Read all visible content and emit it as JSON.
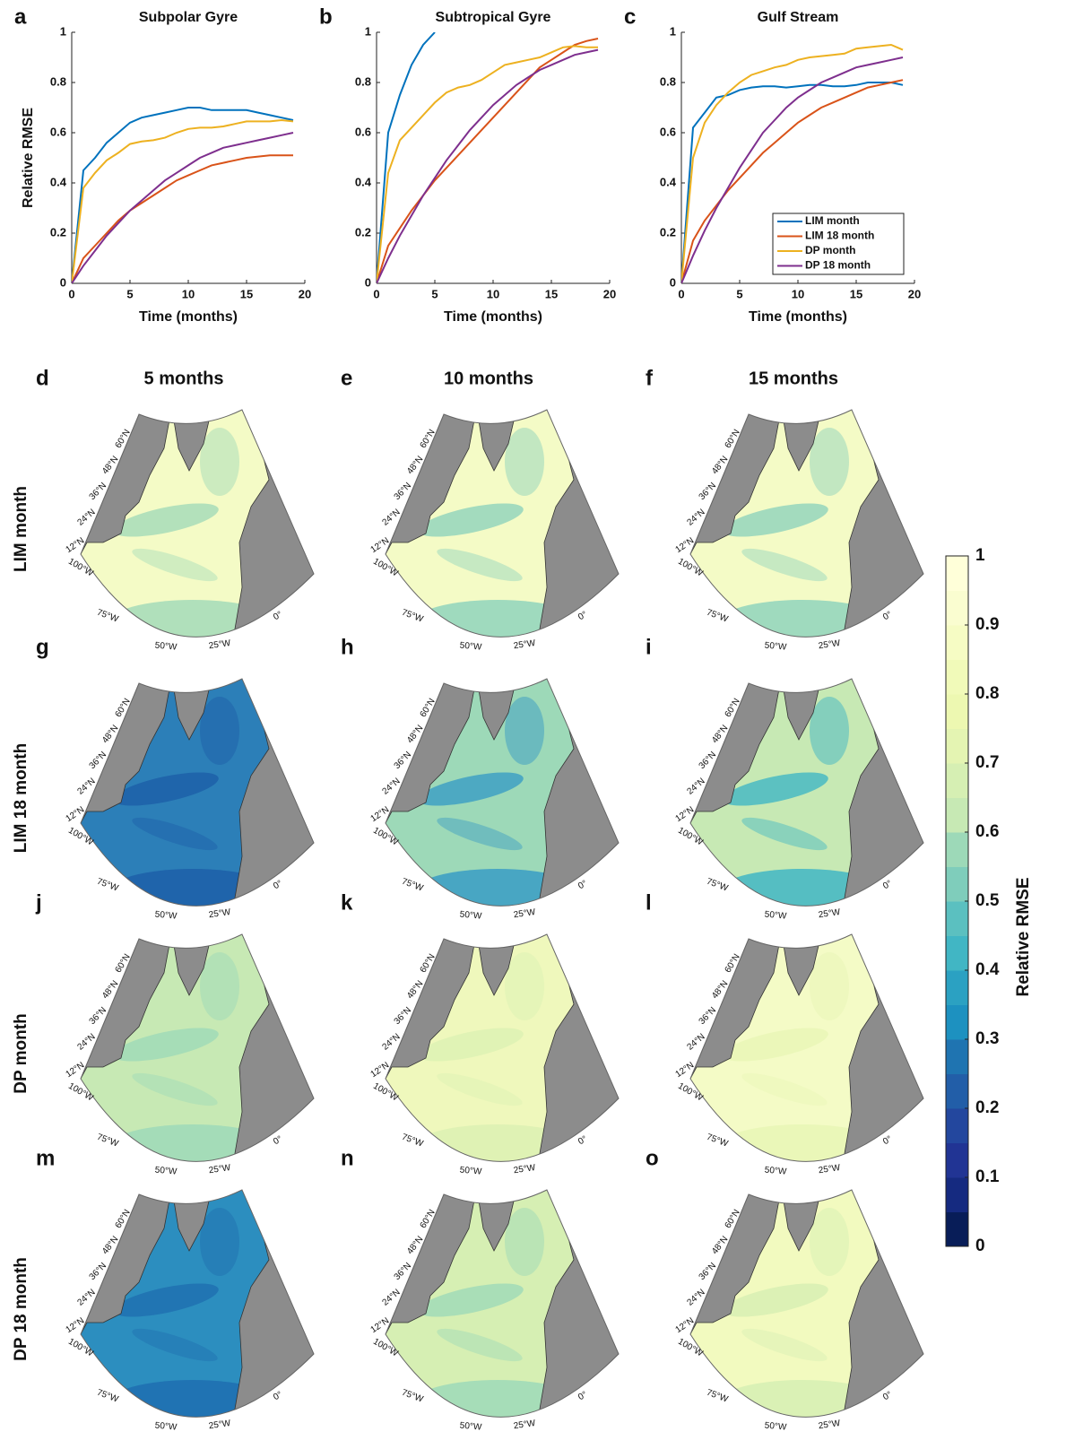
{
  "chart_data": [
    {
      "type": "line",
      "panel": "a",
      "title": "Subpolar Gyre",
      "xlabel": "Time (months)",
      "ylabel": "Relative RMSE",
      "x": [
        0,
        1,
        2,
        3,
        4,
        5,
        6,
        7,
        8,
        9,
        10,
        11,
        12,
        13,
        14,
        15,
        16,
        17,
        18,
        19
      ],
      "xlim": [
        0,
        20
      ],
      "xticks": [
        0,
        5,
        10,
        15,
        20
      ],
      "ylim": [
        0,
        1
      ],
      "yticks": [
        0,
        0.2,
        0.4,
        0.6,
        0.8,
        1
      ],
      "series": [
        {
          "color": "#0072bd",
          "values": [
            0,
            0.45,
            0.5,
            0.56,
            0.6,
            0.64,
            0.66,
            0.67,
            0.68,
            0.69,
            0.7,
            0.7,
            0.69,
            0.69,
            0.69,
            0.69,
            0.68,
            0.67,
            0.66,
            0.65
          ]
        },
        {
          "color": "#d95319",
          "values": [
            0,
            0.1,
            0.15,
            0.2,
            0.25,
            0.29,
            0.32,
            0.35,
            0.38,
            0.41,
            0.43,
            0.45,
            0.47,
            0.48,
            0.49,
            0.5,
            0.505,
            0.51,
            0.51,
            0.51
          ]
        },
        {
          "color": "#edb120",
          "values": [
            0,
            0.38,
            0.44,
            0.49,
            0.52,
            0.555,
            0.565,
            0.57,
            0.58,
            0.6,
            0.615,
            0.62,
            0.62,
            0.625,
            0.635,
            0.645,
            0.645,
            0.645,
            0.65,
            0.645
          ]
        },
        {
          "color": "#7e2f8e",
          "values": [
            0,
            0.07,
            0.13,
            0.19,
            0.24,
            0.29,
            0.33,
            0.37,
            0.41,
            0.44,
            0.47,
            0.5,
            0.52,
            0.54,
            0.55,
            0.56,
            0.57,
            0.58,
            0.59,
            0.6
          ]
        }
      ]
    },
    {
      "type": "line",
      "panel": "b",
      "title": "Subtropical Gyre",
      "xlabel": "Time (months)",
      "x": [
        0,
        1,
        2,
        3,
        4,
        5,
        6,
        7,
        8,
        9,
        10,
        11,
        12,
        13,
        14,
        15,
        16,
        17,
        18,
        19
      ],
      "xlim": [
        0,
        20
      ],
      "xticks": [
        0,
        5,
        10,
        15,
        20
      ],
      "ylim": [
        0,
        1
      ],
      "yticks": [
        0,
        0.2,
        0.4,
        0.6,
        0.8,
        1
      ],
      "series": [
        {
          "color": "#0072bd",
          "values": [
            0,
            0.6,
            0.75,
            0.87,
            0.95,
            1,
            null,
            null,
            null,
            null,
            null,
            null,
            null,
            null,
            null,
            null,
            null,
            null,
            null,
            null
          ]
        },
        {
          "color": "#d95319",
          "values": [
            0,
            0.15,
            0.22,
            0.29,
            0.35,
            0.41,
            0.46,
            0.51,
            0.56,
            0.61,
            0.66,
            0.71,
            0.76,
            0.81,
            0.86,
            0.89,
            0.92,
            0.95,
            0.965,
            0.975
          ]
        },
        {
          "color": "#edb120",
          "values": [
            0,
            0.44,
            0.57,
            0.62,
            0.67,
            0.72,
            0.76,
            0.78,
            0.79,
            0.81,
            0.84,
            0.87,
            0.88,
            0.89,
            0.9,
            0.92,
            0.94,
            0.945,
            0.94,
            0.94
          ]
        },
        {
          "color": "#7e2f8e",
          "values": [
            0,
            0.1,
            0.19,
            0.27,
            0.35,
            0.42,
            0.49,
            0.55,
            0.61,
            0.66,
            0.71,
            0.75,
            0.79,
            0.82,
            0.85,
            0.87,
            0.89,
            0.91,
            0.92,
            0.93
          ]
        }
      ]
    },
    {
      "type": "line",
      "panel": "c",
      "title": "Gulf Stream",
      "xlabel": "Time (months)",
      "legend": "lower right",
      "x": [
        0,
        1,
        2,
        3,
        4,
        5,
        6,
        7,
        8,
        9,
        10,
        11,
        12,
        13,
        14,
        15,
        16,
        17,
        18,
        19
      ],
      "xlim": [
        0,
        20
      ],
      "xticks": [
        0,
        5,
        10,
        15,
        20
      ],
      "ylim": [
        0,
        1
      ],
      "yticks": [
        0,
        0.2,
        0.4,
        0.6,
        0.8,
        1
      ],
      "series": [
        {
          "name": "LIM month",
          "color": "#0072bd",
          "values": [
            0,
            0.62,
            0.68,
            0.74,
            0.75,
            0.77,
            0.78,
            0.785,
            0.785,
            0.78,
            0.785,
            0.79,
            0.79,
            0.785,
            0.785,
            0.79,
            0.8,
            0.8,
            0.8,
            0.79
          ]
        },
        {
          "name": "LIM 18 month",
          "color": "#d95319",
          "values": [
            0,
            0.17,
            0.25,
            0.31,
            0.37,
            0.42,
            0.47,
            0.52,
            0.56,
            0.6,
            0.64,
            0.67,
            0.7,
            0.72,
            0.74,
            0.76,
            0.78,
            0.79,
            0.8,
            0.81
          ]
        },
        {
          "name": "DP month",
          "color": "#edb120",
          "values": [
            0,
            0.5,
            0.64,
            0.71,
            0.76,
            0.8,
            0.83,
            0.845,
            0.86,
            0.87,
            0.89,
            0.9,
            0.905,
            0.91,
            0.915,
            0.935,
            0.94,
            0.945,
            0.95,
            0.93
          ]
        },
        {
          "name": "DP 18 month",
          "color": "#7e2f8e",
          "values": [
            0,
            0.11,
            0.21,
            0.3,
            0.38,
            0.46,
            0.53,
            0.6,
            0.65,
            0.7,
            0.74,
            0.77,
            0.8,
            0.82,
            0.84,
            0.86,
            0.87,
            0.88,
            0.89,
            0.9
          ]
        }
      ]
    }
  ],
  "maps": {
    "column_titles": [
      "5 months",
      "10 months",
      "15 months"
    ],
    "rows": [
      {
        "title": "LIM month",
        "panels": [
          "d",
          "e",
          "f"
        ]
      },
      {
        "title": "LIM 18 month",
        "panels": [
          "g",
          "h",
          "i"
        ]
      },
      {
        "title": "DP month",
        "panels": [
          "j",
          "k",
          "l"
        ]
      },
      {
        "title": "DP 18 month",
        "panels": [
          "m",
          "n",
          "o"
        ]
      }
    ],
    "lat_labels": [
      "60°N",
      "48°N",
      "36°N",
      "24°N",
      "12°N"
    ],
    "lon_labels": [
      "100°W",
      "75°W",
      "50°W",
      "25°W",
      "0°"
    ],
    "colorbar": {
      "label": "Relative RMSE",
      "clim": [
        0,
        1
      ],
      "ticks": [
        0,
        0.1,
        0.2,
        0.3,
        0.4,
        0.5,
        0.6,
        0.7,
        0.8,
        0.9,
        1
      ],
      "colors": [
        "#081d58",
        "#152a80",
        "#213494",
        "#23479e",
        "#225ea8",
        "#1f74b1",
        "#1d91c0",
        "#2ba1c2",
        "#41b6c4",
        "#5bc0c0",
        "#7fcdbb",
        "#9dd9b8",
        "#c7e9b4",
        "#d6efb3",
        "#e4f4b2",
        "#edf8b1",
        "#f1fab9",
        "#f6fcc4",
        "#fafdd0",
        "#ffffd9"
      ]
    }
  }
}
